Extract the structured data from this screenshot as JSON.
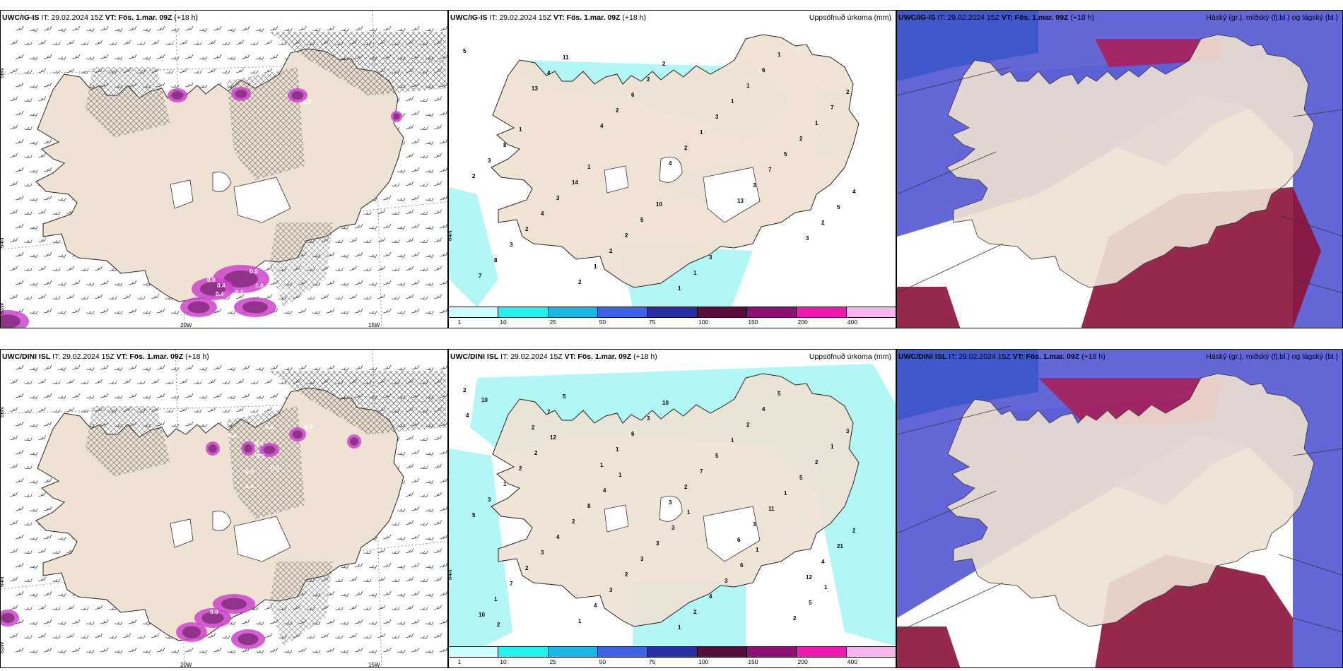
{
  "colors": {
    "land": "#efe2d2",
    "coast": "#222222",
    "precip_light": "#b2f7f5",
    "purple": "#8a2f82",
    "magenta": "#cc44cc",
    "cloud_blue": "#5b5fd6",
    "cloud_red": "#b3174a",
    "cloud_dark": "#8c1238"
  },
  "top_row": {
    "panel1": {
      "model": "UWC/IG-IS",
      "it_label": "IT:",
      "it_value": "29.02.2024 15Z",
      "vt_label": "VT:",
      "vt_value": "Fös. 1.mar. 09Z",
      "lead": "(+18 h)",
      "axis": {
        "lat1": "66N",
        "lat2": "64N",
        "lat3": "63W",
        "lon1": "20W",
        "lon2": "15W"
      },
      "values": [
        "0.3",
        "0.5",
        "0.4",
        "0.5",
        "1.0",
        "0.5",
        "0.8",
        "0.4",
        "0.5"
      ]
    },
    "panel2": {
      "model": "UWC/IG-IS",
      "it_label": "IT:",
      "it_value": "29.02.2024 15Z",
      "vt_label": "VT:",
      "vt_value": "Fös. 1.mar. 09Z",
      "lead": "(+18 h)",
      "title_right": "Uppsöfnuð úrkoma (mm)",
      "axis": {
        "lat": "64N"
      },
      "colorbar": [
        "1",
        "10",
        "25",
        "50",
        "75",
        "100",
        "150",
        "200",
        "400"
      ],
      "values": [
        "5",
        "13",
        "4",
        "4",
        "13",
        "3",
        "7",
        "4",
        "2",
        "2",
        "3",
        "2",
        "8",
        "11",
        "6",
        "1",
        "7",
        "5",
        "3",
        "2",
        "2",
        "3",
        "5",
        "4",
        "2",
        "1",
        "2",
        "1",
        "2",
        "2",
        "4",
        "2",
        "1",
        "1",
        "1",
        "3",
        "3",
        "2",
        "1",
        "6",
        "7",
        "8",
        "14",
        "5",
        "3",
        "1",
        "2",
        "1",
        "1",
        "10"
      ]
    },
    "panel3": {
      "model": "UWC/IG-IS",
      "it_label": "IT:",
      "it_value": "29.02.2024 15Z",
      "vt_label": "VT:",
      "vt_value": "Fös. 1.mar. 09Z",
      "lead": "(+18 h)",
      "title_right": "Háský (gr.), miðský (fj.bl.) og lágský (bl.)"
    }
  },
  "bottom_row": {
    "panel1": {
      "model": "UWC/DINI ISL",
      "it_label": "IT:",
      "it_value": "29.02.2024 15Z",
      "vt_label": "VT:",
      "vt_value": "Fös. 1.mar. 09Z",
      "lead": "(+18 h)",
      "axis": {
        "lat1": "66N",
        "lat2": "64N",
        "lat3": "63W",
        "lon1": "20W",
        "lon2": "15W"
      },
      "values": [
        "0.3",
        "0.6",
        "0.6",
        "0.3",
        "0.5",
        "0.3",
        "0.3",
        "0.4",
        "0.8",
        "1.4"
      ]
    },
    "panel2": {
      "model": "UWC/DINI ISL",
      "it_label": "IT:",
      "it_value": "29.02.2024 15Z",
      "vt_label": "VT:",
      "vt_value": "Fös. 1.mar. 09Z",
      "lead": "(+18 h)",
      "title_right": "Uppsöfnuð úrkoma (mm)",
      "axis": {
        "lat": "64N"
      },
      "colorbar": [
        "1",
        "10",
        "25",
        "50",
        "75",
        "100",
        "150",
        "200",
        "400"
      ],
      "values": [
        "2",
        "2",
        "1",
        "3",
        "6",
        "12",
        "10",
        "7",
        "1",
        "2",
        "3",
        "4",
        "1",
        "5",
        "6",
        "7",
        "11",
        "21",
        "7",
        "1",
        "3",
        "5",
        "1",
        "2",
        "2",
        "4",
        "10",
        "1",
        "5",
        "5",
        "3",
        "3",
        "1",
        "2",
        "2",
        "3",
        "4",
        "2",
        "2",
        "4",
        "1",
        "1",
        "2",
        "3",
        "4",
        "5",
        "3",
        "2",
        "8",
        "3",
        "3",
        "2",
        "4",
        "2",
        "4",
        "3",
        "6",
        "5",
        "10",
        "12",
        "1",
        "1",
        "1",
        "1",
        "2"
      ]
    },
    "panel3": {
      "model": "UWC/DINI ISL",
      "it_label": "IT:",
      "it_value": "29.02.2024 15Z",
      "vt_label": "VT:",
      "vt_value": "Fös. 1.mar. 09Z",
      "lead": "(+18 h)",
      "title_right": "Háský (gr.), miðský (fj.bl.) og lágský (bl.)"
    }
  }
}
